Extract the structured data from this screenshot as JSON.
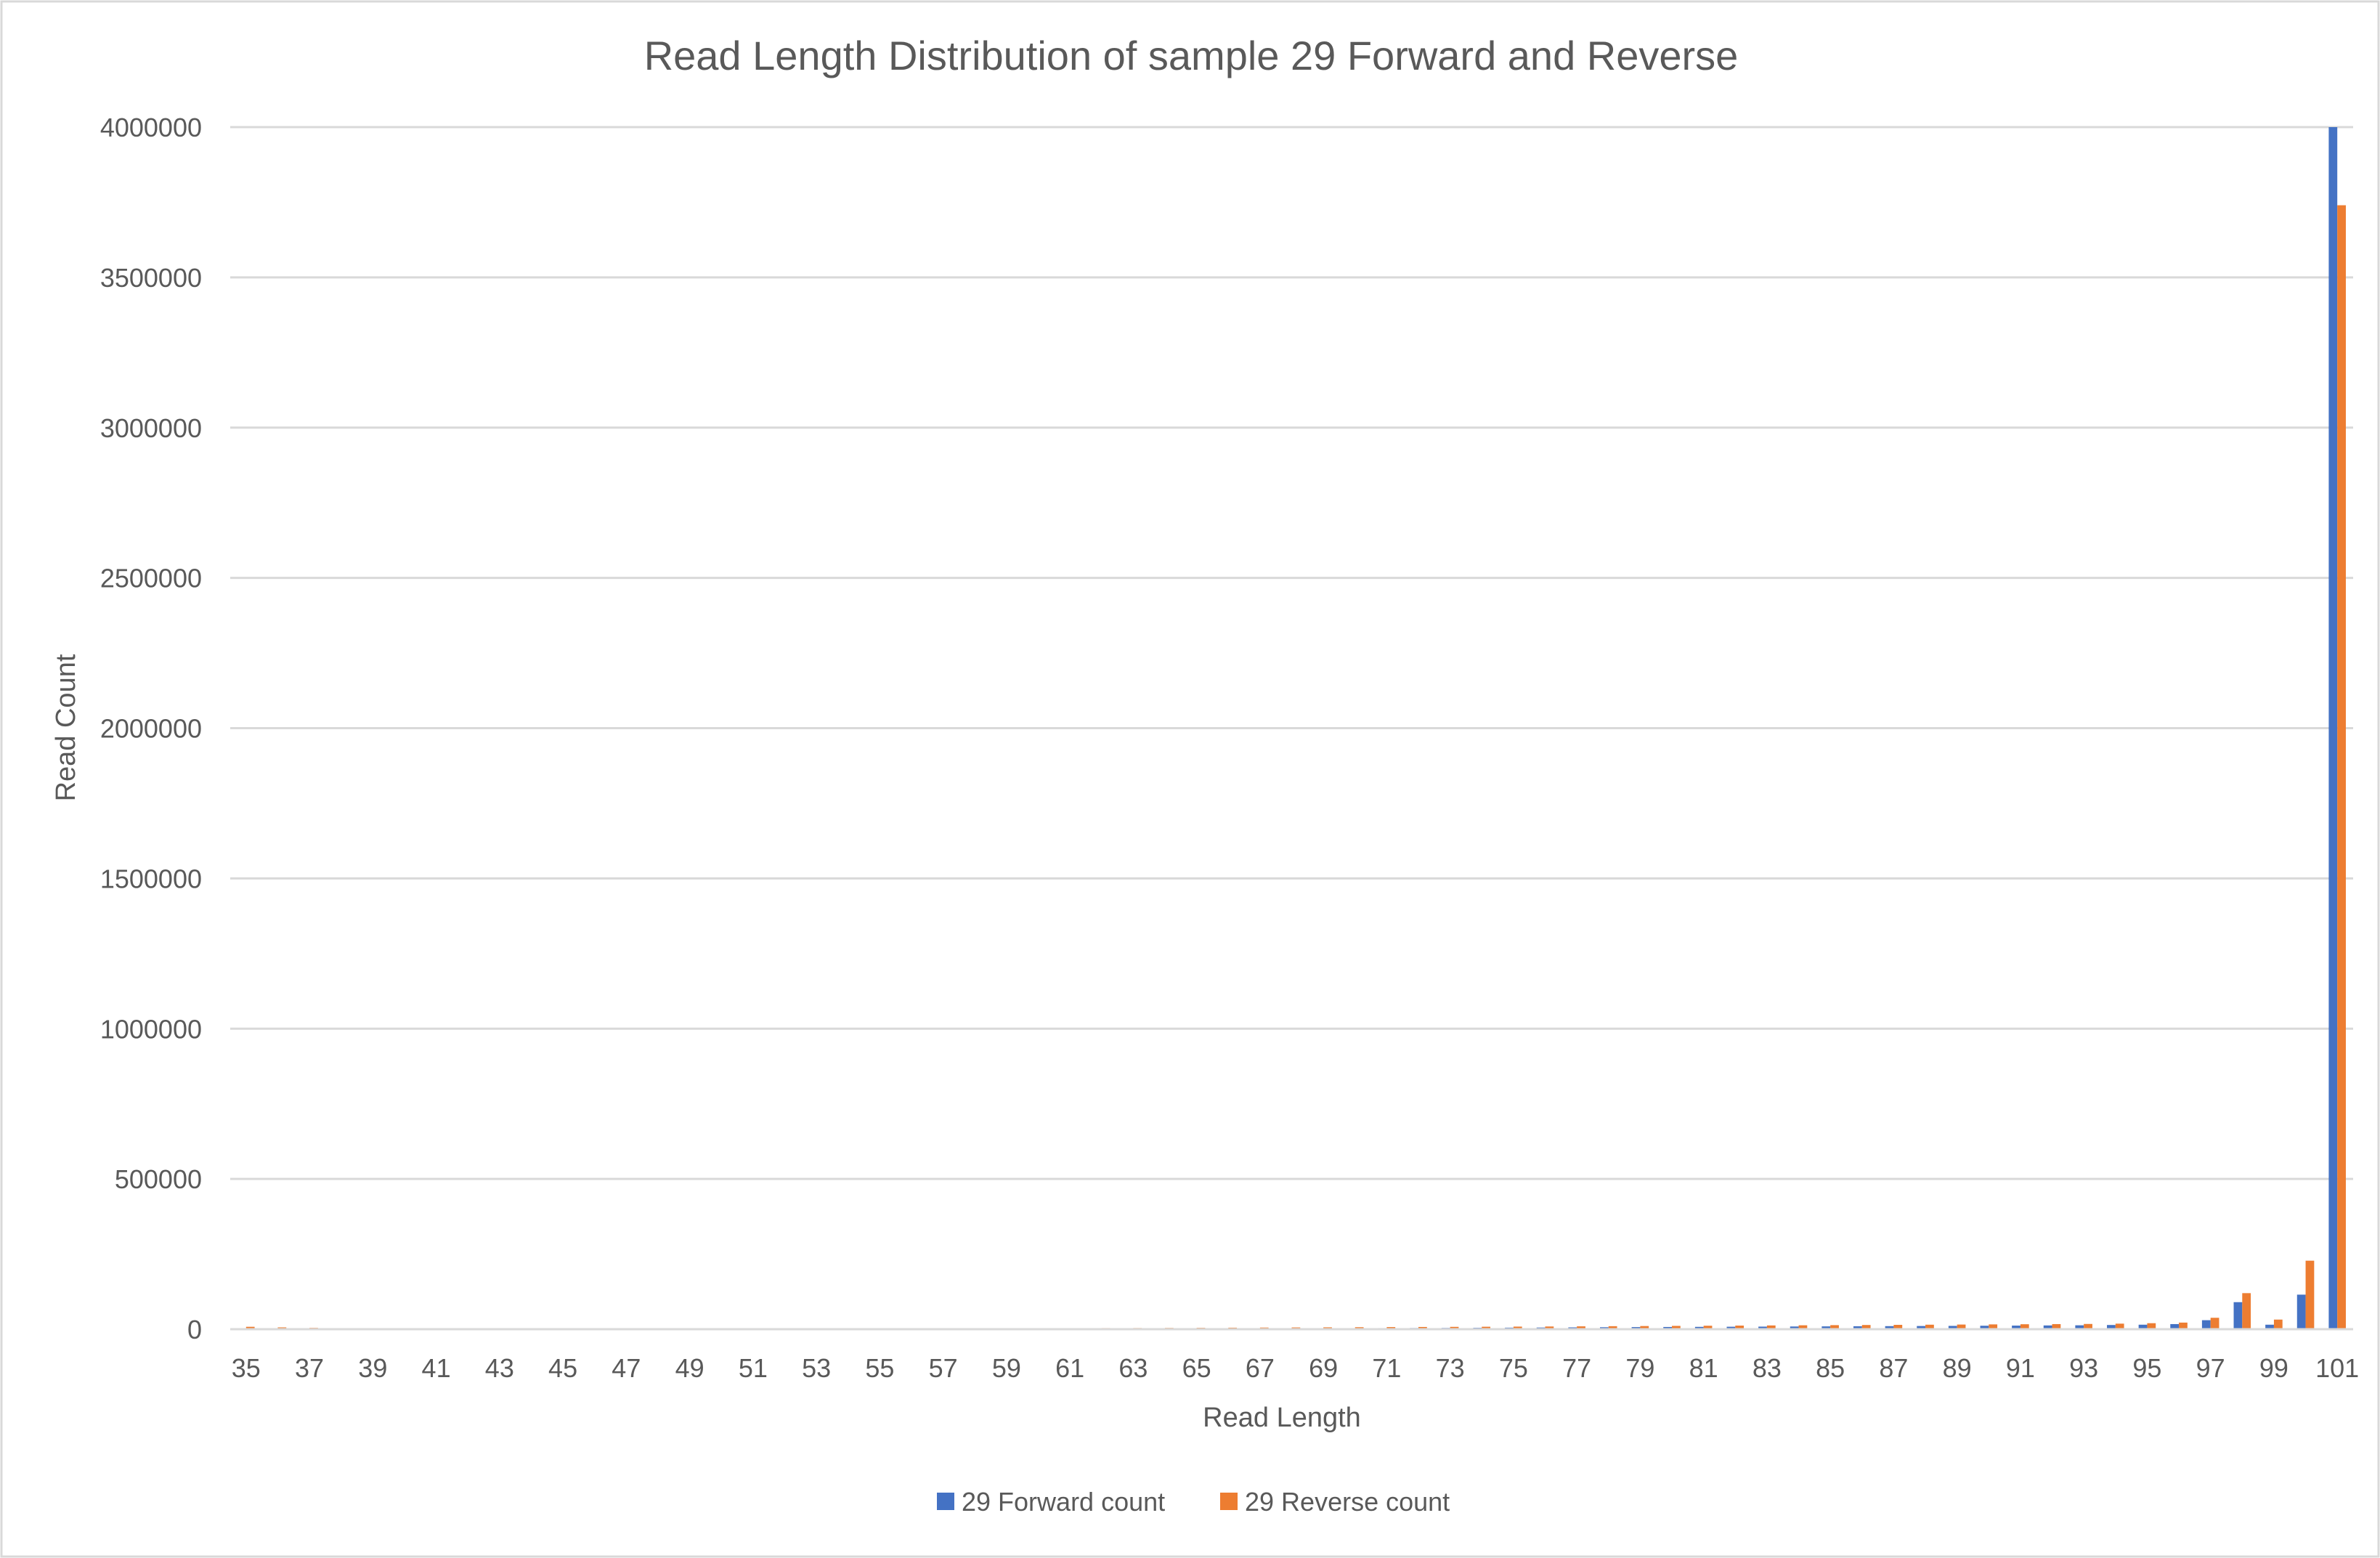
{
  "chart_data": {
    "type": "bar",
    "title": "Read Length Distribution of sample 29 Forward and Reverse",
    "xlabel": "Read Length",
    "ylabel": "Read Count",
    "ylim": [
      0,
      4000000
    ],
    "yticks": [
      0,
      500000,
      1000000,
      1500000,
      2000000,
      2500000,
      3000000,
      3500000,
      4000000
    ],
    "ytick_labels": [
      "0",
      "500000",
      "1000000",
      "1500000",
      "2000000",
      "2500000",
      "3000000",
      "3500000",
      "4000000"
    ],
    "grid": true,
    "legend_position": "bottom",
    "categories": [
      "35",
      "36",
      "37",
      "38",
      "39",
      "40",
      "41",
      "42",
      "43",
      "44",
      "45",
      "46",
      "47",
      "48",
      "49",
      "50",
      "51",
      "52",
      "53",
      "54",
      "55",
      "56",
      "57",
      "58",
      "59",
      "60",
      "61",
      "62",
      "63",
      "64",
      "65",
      "66",
      "67",
      "68",
      "69",
      "70",
      "71",
      "72",
      "73",
      "74",
      "75",
      "76",
      "77",
      "78",
      "79",
      "80",
      "81",
      "82",
      "83",
      "84",
      "85",
      "86",
      "87",
      "88",
      "89",
      "90",
      "91",
      "92",
      "93",
      "94",
      "95",
      "96",
      "97",
      "98",
      "99",
      "100",
      "101"
    ],
    "xtick_labels": [
      "35",
      "",
      "37",
      "",
      "39",
      "",
      "41",
      "",
      "43",
      "",
      "45",
      "",
      "47",
      "",
      "49",
      "",
      "51",
      "",
      "53",
      "",
      "55",
      "",
      "57",
      "",
      "59",
      "",
      "61",
      "",
      "63",
      "",
      "65",
      "",
      "67",
      "",
      "69",
      "",
      "71",
      "",
      "73",
      "",
      "75",
      "",
      "77",
      "",
      "79",
      "",
      "81",
      "",
      "83",
      "",
      "85",
      "",
      "87",
      "",
      "89",
      "",
      "91",
      "",
      "93",
      "",
      "95",
      "",
      "97",
      "",
      "99",
      "",
      "101"
    ],
    "series": [
      {
        "name": "29 Forward count",
        "color": "#4472C4",
        "values": [
          1000,
          1000,
          900,
          800,
          500,
          400,
          300,
          300,
          200,
          200,
          200,
          200,
          200,
          200,
          200,
          200,
          200,
          200,
          200,
          200,
          200,
          200,
          200,
          200,
          1500,
          1500,
          1700,
          1800,
          2000,
          2100,
          2300,
          2500,
          2700,
          2900,
          3100,
          3400,
          3700,
          4000,
          4300,
          4700,
          5100,
          5500,
          6000,
          6500,
          7000,
          7400,
          7800,
          8200,
          8600,
          9000,
          9400,
          9800,
          10200,
          10600,
          11000,
          11500,
          12000,
          12500,
          13000,
          14000,
          15000,
          17000,
          30000,
          90000,
          15000,
          115000,
          4000000
        ]
      },
      {
        "name": "29 Reverse count",
        "color": "#ED7D31",
        "values": [
          8000,
          6000,
          4500,
          3500,
          2000,
          1500,
          1000,
          900,
          800,
          700,
          600,
          600,
          500,
          500,
          500,
          500,
          500,
          500,
          500,
          500,
          500,
          500,
          500,
          500,
          3000,
          3200,
          3500,
          3800,
          4000,
          4300,
          4600,
          5000,
          5400,
          5800,
          6200,
          6600,
          7000,
          7400,
          7800,
          8200,
          8600,
          9000,
          9500,
          10000,
          10500,
          11000,
          11500,
          12000,
          12500,
          13000,
          13500,
          14000,
          14500,
          15000,
          15500,
          16000,
          16500,
          17000,
          17500,
          18500,
          20000,
          22000,
          38000,
          120000,
          32000,
          228000,
          3740000
        ]
      }
    ]
  }
}
